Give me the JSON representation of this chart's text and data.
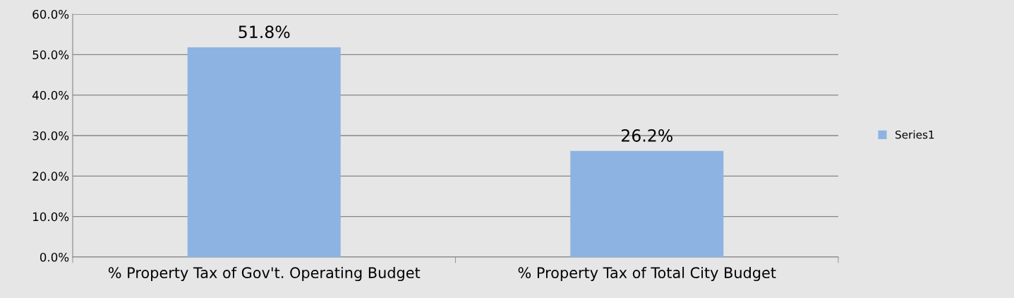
{
  "chart_data": {
    "type": "bar",
    "categories": [
      "% Property Tax of Gov't. Operating Budget",
      "% Property Tax of Total City Budget"
    ],
    "series": [
      {
        "name": "Series1",
        "color": "#8db3e2",
        "values": [
          51.8,
          26.2
        ],
        "value_labels": [
          "51.8%",
          "26.2%"
        ]
      }
    ],
    "ylim": [
      0,
      60
    ],
    "yticks": [
      {
        "value": 0,
        "label": "0.0%"
      },
      {
        "value": 10,
        "label": "10.0%"
      },
      {
        "value": 20,
        "label": "20.0%"
      },
      {
        "value": 30,
        "label": "30.0%"
      },
      {
        "value": 40,
        "label": "40.0%"
      },
      {
        "value": 50,
        "label": "50.0%"
      },
      {
        "value": 60,
        "label": "60.0%"
      }
    ],
    "grid": "y",
    "legend": "right"
  }
}
